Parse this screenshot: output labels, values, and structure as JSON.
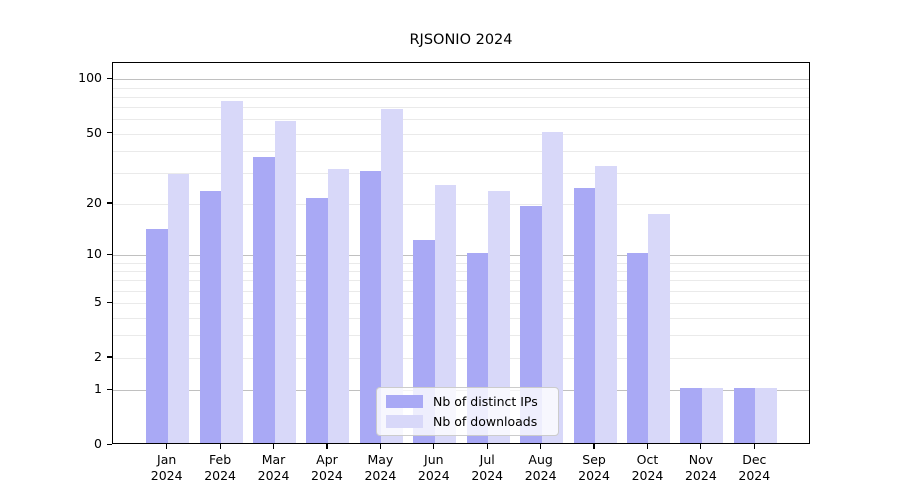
{
  "title": "RJSONIO 2024",
  "chart_data": {
    "type": "bar",
    "title": "RJSONIO 2024",
    "categories": [
      "Jan",
      "Feb",
      "Mar",
      "Apr",
      "May",
      "Jun",
      "Jul",
      "Aug",
      "Sep",
      "Oct",
      "Nov",
      "Dec"
    ],
    "x_tick_second_line": "2024",
    "series": [
      {
        "name": "Nb of distinct IPs",
        "color": "#a9a9f5",
        "values": [
          14,
          23,
          36,
          21,
          30,
          12,
          10,
          19,
          24,
          10,
          1,
          1
        ]
      },
      {
        "name": "Nb of downloads",
        "color": "#d8d8f9",
        "values": [
          29,
          74,
          57,
          31,
          67,
          25,
          23,
          50,
          32,
          17,
          1,
          1
        ]
      }
    ],
    "xlabel": "",
    "ylabel": "",
    "yscale": "log1p",
    "ylim": [
      0,
      123
    ],
    "y_ticks": [
      0,
      1,
      2,
      5,
      10,
      20,
      50,
      100
    ],
    "y_tick_labels": [
      "0",
      "1",
      "2",
      "5",
      "10",
      "20",
      "50",
      "100"
    ],
    "y_major_gridlines": [
      1,
      10,
      100
    ],
    "y_minor_gridlines": [
      2,
      3,
      4,
      5,
      6,
      7,
      8,
      9,
      20,
      30,
      40,
      50,
      60,
      70,
      80,
      90
    ],
    "grid": true,
    "legend_position": "lower center",
    "legend_labels": [
      "Nb of distinct IPs",
      "Nb of downloads"
    ]
  },
  "colors": {
    "bar_ips": "#a9a9f5",
    "bar_downloads": "#d8d8f9",
    "grid_major": "#c0c0c0",
    "grid_minor": "#eaeaea",
    "axis": "#000000",
    "legend_border": "#cccccc"
  }
}
